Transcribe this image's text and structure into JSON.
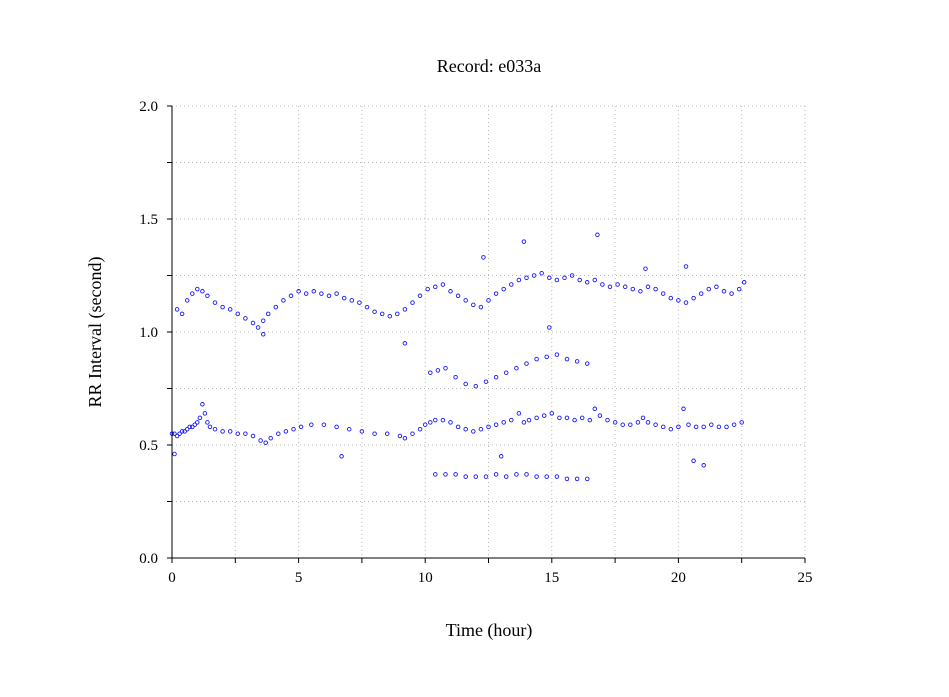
{
  "chart_data": {
    "type": "scatter",
    "title": "Record:  e033a",
    "xlabel": "Time (hour)",
    "ylabel": "RR Interval (second)",
    "xlim": [
      0,
      25
    ],
    "ylim": [
      0.0,
      2.0
    ],
    "x_ticks": [
      0,
      5,
      10,
      15,
      20,
      25
    ],
    "x_tick_labels": [
      "0",
      "5",
      "10",
      "15",
      "20",
      "25"
    ],
    "y_ticks": [
      0.0,
      0.5,
      1.0,
      1.5,
      2.0
    ],
    "y_tick_labels": [
      "0.0",
      "0.5",
      "1.0",
      "1.5",
      "2.0"
    ],
    "grid": true,
    "marker_color": "#1a1aff",
    "marker": "open-circle",
    "series": [
      {
        "x": [
          0.0,
          0.1,
          0.2,
          0.3,
          0.4,
          0.5,
          0.6,
          0.7,
          0.8,
          0.9,
          1.0,
          1.1,
          1.2,
          1.3,
          1.4,
          1.5,
          1.7,
          2.0,
          2.3,
          2.6,
          2.9,
          3.2,
          3.5,
          3.7,
          3.9,
          4.2,
          4.5,
          4.8,
          5.1,
          5.5,
          6.0,
          6.5,
          7.0,
          7.5,
          8.0,
          8.5,
          9.0,
          9.2,
          9.5,
          9.8,
          10.0,
          10.2,
          10.4,
          10.7,
          11.0,
          11.3,
          11.6,
          11.9,
          12.2,
          12.5,
          12.8,
          13.1,
          13.4,
          13.7,
          13.9,
          14.1,
          14.4,
          14.7,
          15.0,
          15.3,
          15.6,
          15.9,
          16.2,
          16.5,
          16.7,
          16.9,
          17.2,
          17.5,
          17.8,
          18.1,
          18.4,
          18.6,
          18.8,
          19.1,
          19.4,
          19.7,
          20.0,
          20.2,
          20.4,
          20.7,
          21.0,
          21.3,
          21.6,
          21.9,
          22.2,
          22.5
        ],
        "y": [
          0.55,
          0.55,
          0.54,
          0.55,
          0.56,
          0.56,
          0.57,
          0.58,
          0.58,
          0.59,
          0.6,
          0.62,
          0.68,
          0.64,
          0.6,
          0.58,
          0.57,
          0.56,
          0.56,
          0.55,
          0.55,
          0.54,
          0.52,
          0.51,
          0.53,
          0.55,
          0.56,
          0.57,
          0.58,
          0.59,
          0.59,
          0.58,
          0.57,
          0.56,
          0.55,
          0.55,
          0.54,
          0.53,
          0.55,
          0.57,
          0.59,
          0.6,
          0.61,
          0.61,
          0.6,
          0.58,
          0.57,
          0.56,
          0.57,
          0.58,
          0.59,
          0.6,
          0.61,
          0.64,
          0.6,
          0.61,
          0.62,
          0.63,
          0.64,
          0.62,
          0.62,
          0.61,
          0.62,
          0.61,
          0.66,
          0.63,
          0.61,
          0.6,
          0.59,
          0.59,
          0.6,
          0.62,
          0.6,
          0.59,
          0.58,
          0.57,
          0.58,
          0.66,
          0.59,
          0.58,
          0.58,
          0.59,
          0.58,
          0.58,
          0.59,
          0.6
        ]
      },
      {
        "x": [
          0.2,
          0.4,
          0.6,
          0.8,
          1.0,
          1.2,
          1.4,
          1.7,
          2.0,
          2.3,
          2.6,
          2.9,
          3.2,
          3.4,
          3.6,
          3.8,
          4.1,
          4.4,
          4.7,
          5.0,
          5.3,
          5.6,
          5.9,
          6.2,
          6.5,
          6.8,
          7.1,
          7.4,
          7.7,
          8.0,
          8.3,
          8.6,
          8.9,
          9.2,
          9.5,
          9.8,
          10.1,
          10.4,
          10.7,
          11.0,
          11.3,
          11.6,
          11.9,
          12.2,
          12.5,
          12.8,
          13.1,
          13.4,
          13.7,
          14.0,
          14.3,
          14.6,
          14.9,
          15.2,
          15.5,
          15.8,
          16.1,
          16.4,
          16.7,
          17.0,
          17.3,
          17.6,
          17.9,
          18.2,
          18.5,
          18.8,
          19.1,
          19.4,
          19.7,
          20.0,
          20.3,
          20.6,
          20.9,
          21.2,
          21.5,
          21.8,
          22.1,
          22.4,
          22.6
        ],
        "y": [
          1.1,
          1.08,
          1.14,
          1.17,
          1.19,
          1.18,
          1.16,
          1.13,
          1.11,
          1.1,
          1.08,
          1.06,
          1.04,
          1.02,
          1.05,
          1.08,
          1.11,
          1.14,
          1.16,
          1.18,
          1.17,
          1.18,
          1.17,
          1.16,
          1.17,
          1.15,
          1.14,
          1.13,
          1.11,
          1.09,
          1.08,
          1.07,
          1.08,
          1.1,
          1.13,
          1.16,
          1.19,
          1.2,
          1.21,
          1.18,
          1.16,
          1.14,
          1.12,
          1.11,
          1.14,
          1.17,
          1.19,
          1.21,
          1.23,
          1.24,
          1.25,
          1.26,
          1.24,
          1.23,
          1.24,
          1.25,
          1.23,
          1.22,
          1.23,
          1.21,
          1.2,
          1.21,
          1.2,
          1.19,
          1.18,
          1.2,
          1.19,
          1.17,
          1.15,
          1.14,
          1.13,
          1.15,
          1.17,
          1.19,
          1.2,
          1.18,
          1.17,
          1.19,
          1.22
        ]
      },
      {
        "x": [
          10.2,
          10.5,
          10.8,
          11.2,
          11.6,
          12.0,
          12.4,
          12.8,
          13.2,
          13.6,
          14.0,
          14.4,
          14.8,
          15.2,
          15.6,
          16.0,
          16.4
        ],
        "y": [
          0.82,
          0.83,
          0.84,
          0.8,
          0.77,
          0.76,
          0.78,
          0.8,
          0.82,
          0.84,
          0.86,
          0.88,
          0.89,
          0.9,
          0.88,
          0.87,
          0.86
        ]
      },
      {
        "x": [
          10.4,
          10.8,
          11.2,
          11.6,
          12.0,
          12.4,
          12.8,
          13.2,
          13.6,
          14.0,
          14.4,
          14.8,
          15.2,
          15.6,
          16.0,
          16.4
        ],
        "y": [
          0.37,
          0.37,
          0.37,
          0.36,
          0.36,
          0.36,
          0.37,
          0.36,
          0.37,
          0.37,
          0.36,
          0.36,
          0.36,
          0.35,
          0.35,
          0.35
        ]
      },
      {
        "x": [
          0.1,
          3.6,
          6.7,
          9.2,
          12.3,
          13.0,
          13.9,
          14.9,
          16.8,
          18.7,
          20.3,
          20.6,
          21.0
        ],
        "y": [
          0.46,
          0.99,
          0.45,
          0.95,
          1.33,
          0.45,
          1.4,
          1.02,
          1.43,
          1.28,
          1.29,
          0.43,
          0.41
        ]
      }
    ]
  }
}
